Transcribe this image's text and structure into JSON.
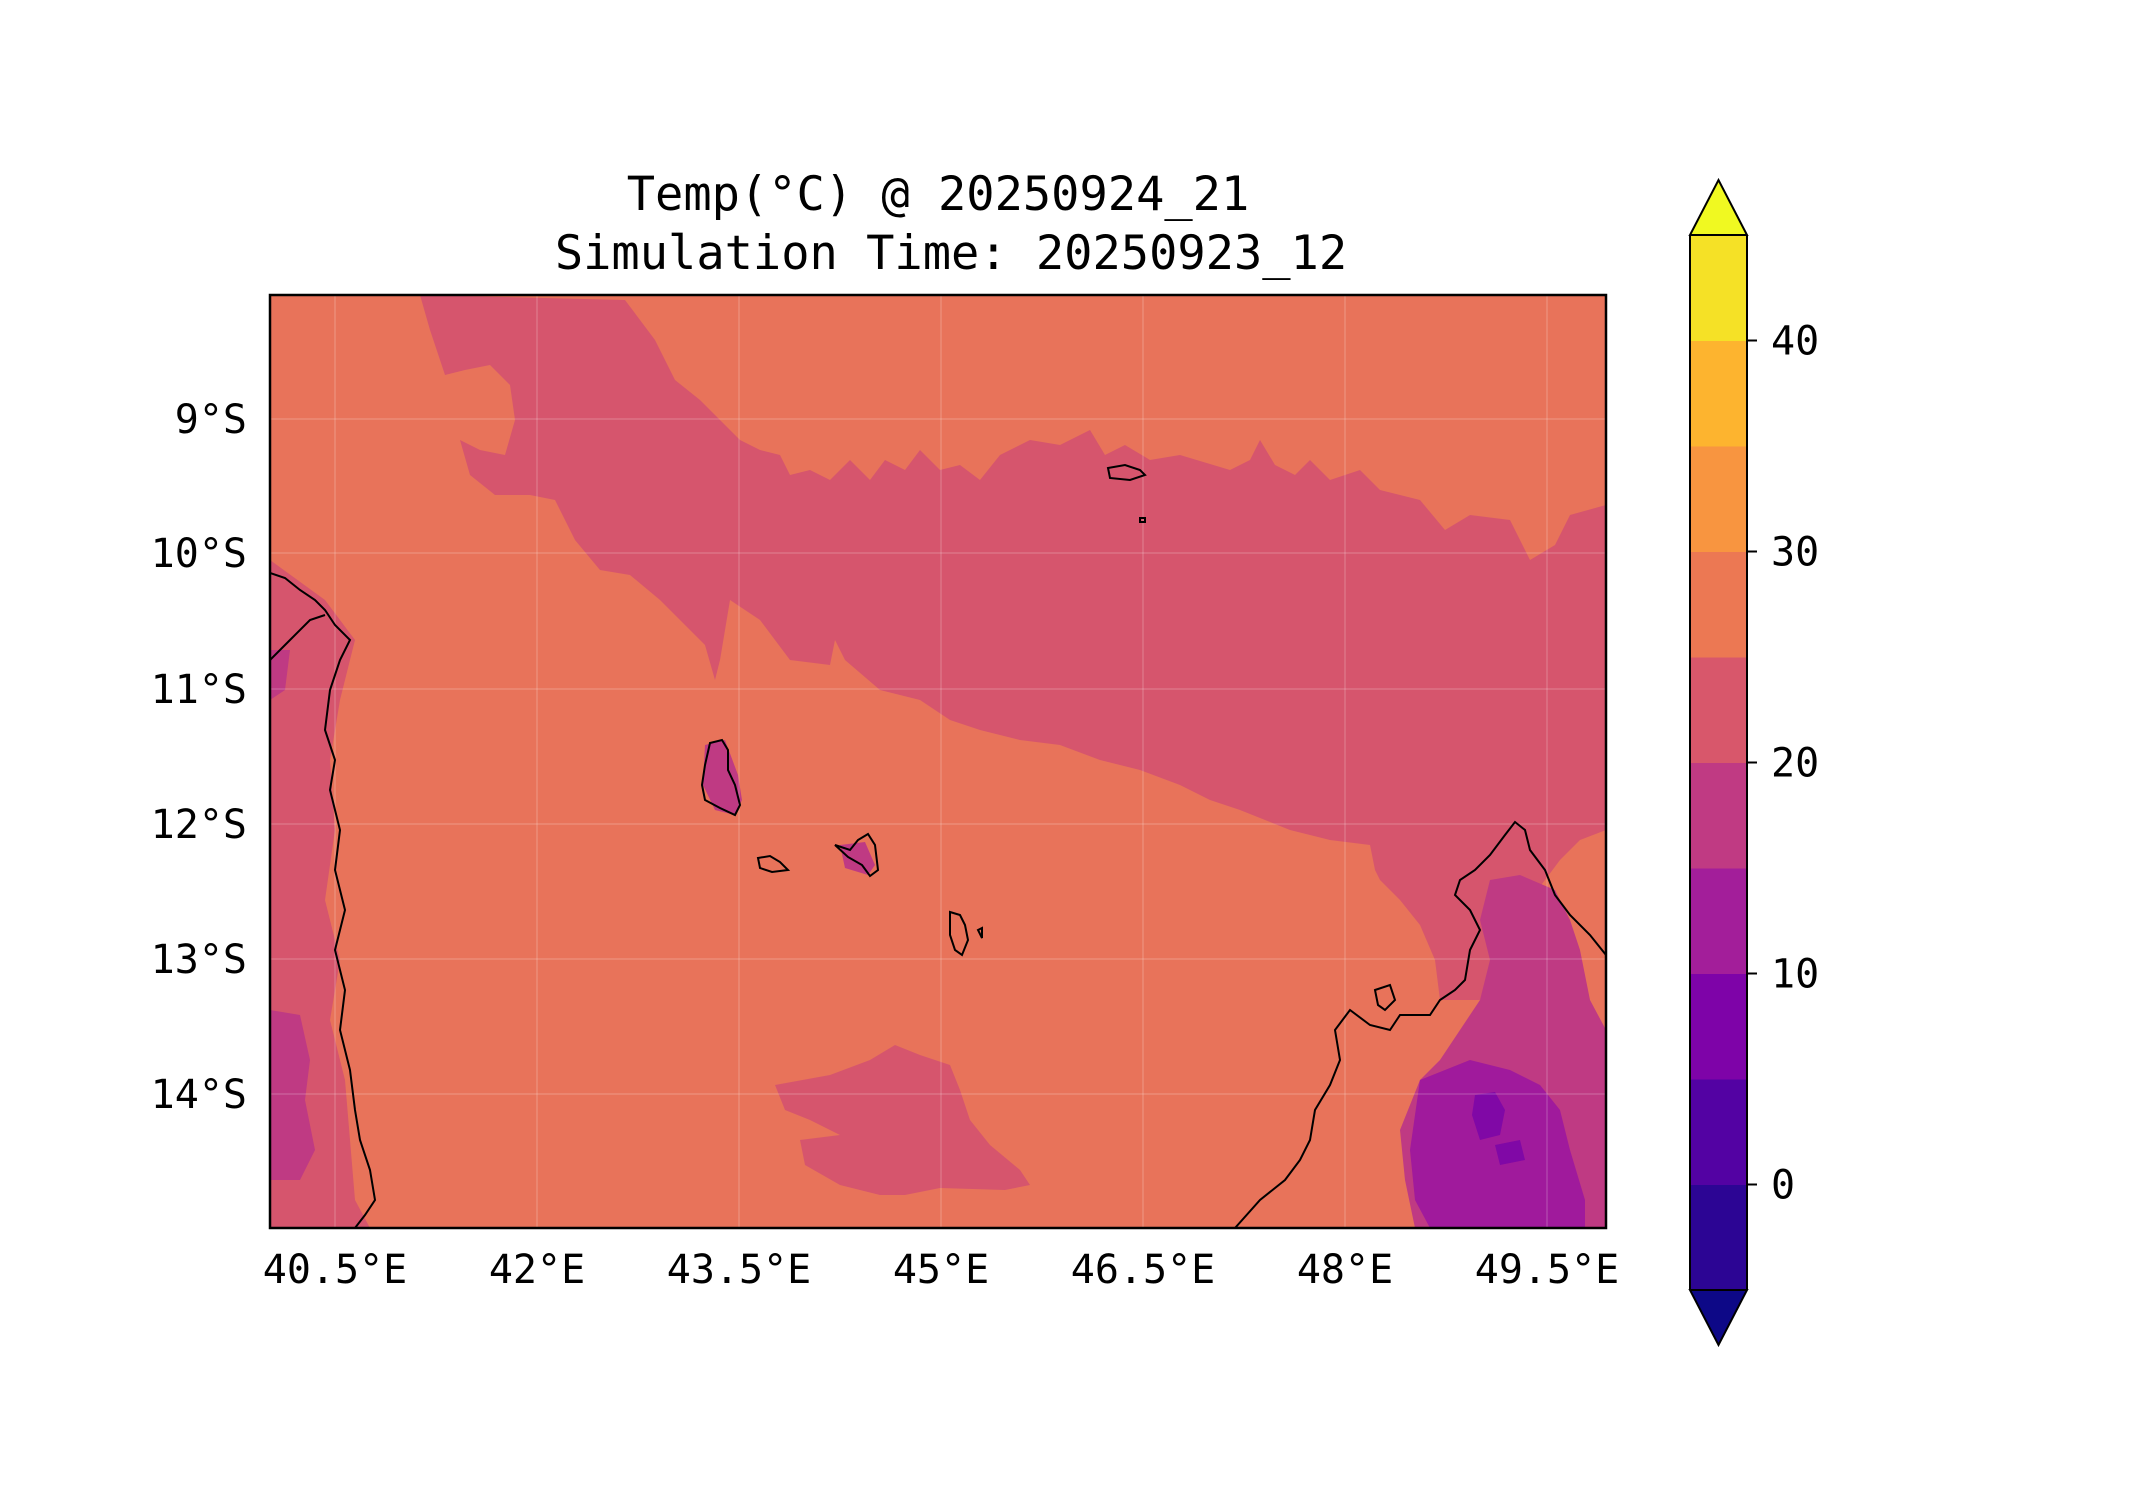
{
  "figure": {
    "title_line1": "Temp(°C) @ 20250924_21",
    "title_line2": "Simulation Time: 20250923_12"
  },
  "map": {
    "variable": "Temperature",
    "units": "°C",
    "lon_range": [
      40.0,
      49.8
    ],
    "lat_range": [
      -15.0,
      -8.1
    ],
    "gridlines": true,
    "x_ticks": [
      "40.5°E",
      "42°E",
      "43.5°E",
      "45°E",
      "46.5°E",
      "48°E",
      "49.5°E"
    ],
    "y_ticks": [
      "9°S",
      "10°S",
      "11°S",
      "12°S",
      "13°S",
      "14°S"
    ],
    "fill_colors": {
      "25_30": "#e8735a",
      "20_25": "#d6556d",
      "15_20": "#bf3a83",
      "10_15": "#a01a9c",
      "5_10": "#8008a6"
    }
  },
  "colorbar": {
    "levels": [
      -5,
      0,
      5,
      10,
      15,
      20,
      25,
      30,
      35,
      40,
      45
    ],
    "tick_labels": [
      "0",
      "10",
      "20",
      "30",
      "40"
    ],
    "colors": [
      "#2c0594",
      "#5302a3",
      "#7e03a8",
      "#a31e9a",
      "#c03a83",
      "#d8576b",
      "#ec7853",
      "#f89540",
      "#fdb42f",
      "#f5e126"
    ],
    "under_color": "#0d0887",
    "over_color": "#f0f921",
    "extend": "both"
  }
}
